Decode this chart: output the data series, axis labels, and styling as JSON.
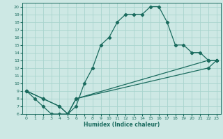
{
  "xlabel": "Humidex (Indice chaleur)",
  "bg_color": "#cde8e4",
  "grid_color": "#a8d4ce",
  "line_color": "#1a6b5e",
  "xlim": [
    -0.5,
    23.5
  ],
  "ylim": [
    6,
    20.5
  ],
  "xticks": [
    0,
    1,
    2,
    3,
    4,
    5,
    6,
    7,
    8,
    9,
    10,
    11,
    12,
    13,
    14,
    15,
    16,
    17,
    18,
    19,
    20,
    21,
    22,
    23
  ],
  "yticks": [
    6,
    7,
    8,
    9,
    10,
    11,
    12,
    13,
    14,
    15,
    16,
    17,
    18,
    19,
    20
  ],
  "line1": {
    "x": [
      0,
      1,
      2,
      3,
      4,
      5,
      6,
      7,
      8,
      9,
      10,
      11,
      12,
      13,
      14,
      15,
      16,
      17,
      18,
      19,
      20,
      21,
      22,
      23
    ],
    "y": [
      9,
      8,
      7,
      6,
      6,
      6,
      7,
      10,
      12,
      15,
      16,
      18,
      19,
      19,
      19,
      20,
      20,
      18,
      15,
      15,
      14,
      14,
      13,
      13
    ]
  },
  "line2": {
    "x": [
      0,
      2,
      4,
      5,
      6,
      22,
      23
    ],
    "y": [
      9,
      8,
      7,
      6,
      8,
      13,
      13
    ]
  },
  "line3": {
    "x": [
      0,
      2,
      4,
      5,
      6,
      22,
      23
    ],
    "y": [
      9,
      8,
      7,
      6,
      8,
      12,
      13
    ]
  }
}
